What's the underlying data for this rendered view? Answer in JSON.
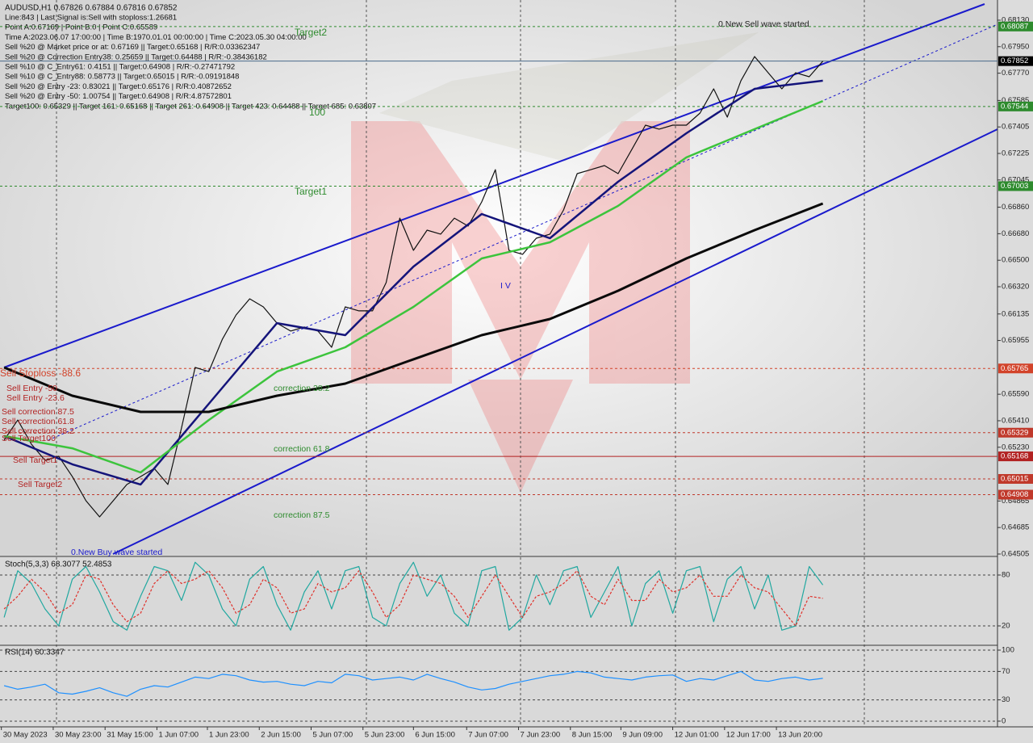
{
  "chart_data": [
    {
      "type": "line",
      "title": "AUDUSD,H1  0.67826 0.67884 0.67816 0.67852",
      "info_lines": [
        "Line:843 | Last Signal is:Sell with stoploss:1.26681",
        "Point A:0.67169 | Point B:0 | Point C:0.65589",
        "Time A:2023.06.07 17:00:00 | Time B:1970.01.01 00:00:00 | Time C:2023.05.30 04:00:00",
        "Sell %20 @ Market price or at: 0.67169 || Target:0.65168 | R/R:0.03362347",
        "Sell %20 @ Correction Entry38: 0.25659 || Target:0.64488 | R/R:-0.38436182",
        "Sell %10 @ C_Entry61: 0.4151 || Target:0.64908 | R/R:-0.27471792",
        "Sell %10 @ C_Entry88: 0.58773 || Target:0.65015 | R/R:-0.09191848",
        "Sell %20 @ Entry -23: 0.83021 || Target:0.65176 | R/R:0.40872652",
        "Sell %20 @ Entry -50: 1.00754 || Target:0.64908 | R/R:4.87572801",
        "Target100: 0.65329 || Target 161: 0.65168 || Target 261: 0.64908 || Target 423: 0.64488 || Target 685: 0.63807"
      ],
      "annotations": [
        "0.New Sell wave started",
        "0.New Buy wave started",
        "I V",
        "correction 38.2",
        "correction 61.8",
        "correction 87.5",
        "Sell Entry -50",
        "Sell Entry -23.6",
        "Sell correction 87.5",
        "Sell correction 61.8",
        "Sell correction 38.2",
        "Sell Target100",
        "Sell Target1",
        "Sell Target2",
        "Target2",
        "100",
        "Target1",
        "Sell Stoploss -88.6"
      ],
      "xlim": [
        -0.3,
        72.8
      ],
      "xticks": [
        {
          "value": -0.2,
          "label": "30 May 2023"
        },
        {
          "value": 3.6,
          "label": "30 May 23:00"
        },
        {
          "value": 7.4,
          "label": "31 May 15:00"
        },
        {
          "value": 11.2,
          "label": "1 Jun 07:00"
        },
        {
          "value": 14.9,
          "label": "1 Jun 23:00"
        },
        {
          "value": 18.7,
          "label": "2 Jun 15:00"
        },
        {
          "value": 22.5,
          "label": "5 Jun 07:00"
        },
        {
          "value": 26.3,
          "label": "5 Jun 23:00"
        },
        {
          "value": 30.0,
          "label": "6 Jun 15:00"
        },
        {
          "value": 33.9,
          "label": "7 Jun 07:00"
        },
        {
          "value": 37.7,
          "label": "7 Jun 23:00"
        },
        {
          "value": 41.5,
          "label": "8 Jun 15:00"
        },
        {
          "value": 45.2,
          "label": "9 Jun 09:00"
        },
        {
          "value": 49.0,
          "label": "12 Jun 01:00"
        },
        {
          "value": 52.8,
          "label": "12 Jun 17:00"
        },
        {
          "value": 56.6,
          "label": "13 Jun 20:00"
        }
      ],
      "ylim": [
        0.64494,
        0.68267
      ],
      "yticks": [
        {
          "value": 0.6813,
          "label": "0.68130"
        },
        {
          "value": 0.6795,
          "label": "0.67950"
        },
        {
          "value": 0.6777,
          "label": "0.67770"
        },
        {
          "value": 0.67585,
          "label": "0.67585"
        },
        {
          "value": 0.67405,
          "label": "0.67405"
        },
        {
          "value": 0.67225,
          "label": "0.67225"
        },
        {
          "value": 0.67045,
          "label": "0.67045"
        },
        {
          "value": 0.6686,
          "label": "0.66860"
        },
        {
          "value": 0.6668,
          "label": "0.66680"
        },
        {
          "value": 0.665,
          "label": "0.66500"
        },
        {
          "value": 0.6632,
          "label": "0.66320"
        },
        {
          "value": 0.66135,
          "label": "0.66135"
        },
        {
          "value": 0.65955,
          "label": "0.65955"
        },
        {
          "value": 0.6559,
          "label": "0.65590"
        },
        {
          "value": 0.6541,
          "label": "0.65410"
        },
        {
          "value": 0.6523,
          "label": "0.65230"
        },
        {
          "value": 0.64865,
          "label": "0.64865"
        },
        {
          "value": 0.64685,
          "label": "0.64685"
        },
        {
          "value": 0.64505,
          "label": "0.64505"
        }
      ],
      "levels": [
        {
          "value": 0.68087,
          "color": "#2e8b2e",
          "style": "dashed"
        },
        {
          "value": 0.67852,
          "color": "#000000",
          "style": "solid"
        },
        {
          "value": 0.67544,
          "color": "#2e8b2e",
          "style": "dashed"
        },
        {
          "value": 0.67003,
          "color": "#2e8b2e",
          "style": "dashed"
        },
        {
          "value": 0.65765,
          "color": "#d2432a",
          "style": "dashed"
        },
        {
          "value": 0.65329,
          "color": "#c0392b",
          "style": "dashed"
        },
        {
          "value": 0.65168,
          "color": "#b22222",
          "style": "solid"
        },
        {
          "value": 0.65015,
          "color": "#c0392b",
          "style": "dashed"
        },
        {
          "value": 0.64908,
          "color": "#c0392b",
          "style": "dashed"
        }
      ],
      "series": [
        {
          "color": "#111111",
          "width": 1.2,
          "values": [
            0.65278,
            0.65415,
            0.65251,
            0.65141,
            0.65169,
            0.65031,
            0.64867,
            0.64757,
            0.64867,
            0.64977,
            0.65031,
            0.65086,
            0.64977,
            0.65361,
            0.65772,
            0.65744,
            0.65964,
            0.66128,
            0.66238,
            0.66183,
            0.66073,
            0.66019,
            0.66046,
            0.66019,
            0.65909,
            0.66183,
            0.66156,
            0.66156,
            0.66348,
            0.66786,
            0.66567,
            0.66704,
            0.66677,
            0.66786,
            0.66732,
            0.66896,
            0.67115,
            0.66567,
            0.6654,
            0.66649,
            0.66677,
            0.66841,
            0.67088,
            0.67115,
            0.67143,
            0.67088,
            0.67252,
            0.67417,
            0.6739,
            0.67417,
            0.67417,
            0.67499,
            0.67664,
            0.67472,
            0.67719,
            0.67883,
            0.67773,
            0.67664,
            0.67773,
            0.67746,
            0.67852
          ]
        },
        {
          "color": "#14147a",
          "width": 2.5,
          "x": [
            0,
            5,
            10,
            15,
            20,
            25,
            30,
            35,
            40,
            45,
            50,
            55,
            60
          ],
          "values": [
            0.65306,
            0.65114,
            0.64977,
            0.65525,
            0.66073,
            0.65991,
            0.66457,
            0.66814,
            0.66649,
            0.67033,
            0.67362,
            0.67664,
            0.67719
          ]
        },
        {
          "color": "#3cc43c",
          "width": 2.5,
          "x": [
            0,
            5,
            10,
            15,
            20,
            25,
            30,
            35,
            40,
            45,
            50,
            55,
            60
          ],
          "values": [
            0.65306,
            0.65223,
            0.65059,
            0.65415,
            0.65744,
            0.65909,
            0.66183,
            0.66512,
            0.66622,
            0.66869,
            0.67198,
            0.6739,
            0.67581
          ]
        },
        {
          "color": "#0a0a0a",
          "width": 3,
          "x": [
            0,
            5,
            10,
            15,
            20,
            25,
            30,
            35,
            40,
            45,
            50,
            55,
            60
          ],
          "values": [
            0.65772,
            0.6558,
            0.6547,
            0.6547,
            0.6558,
            0.65662,
            0.65827,
            0.65991,
            0.66101,
            0.66293,
            0.66512,
            0.66704,
            0.66885
          ]
        }
      ]
    },
    {
      "type": "line",
      "title": "Stoch(5,3,3) 68.3077 52.4853",
      "ylim": [
        -1.9,
        100.95
      ],
      "yticks": [
        80,
        20
      ],
      "series": [
        {
          "color": "#20a8a0",
          "width": 1.2,
          "values": [
            30,
            85,
            70,
            40,
            20,
            75,
            90,
            60,
            25,
            15,
            55,
            90,
            85,
            50,
            95,
            80,
            40,
            20,
            75,
            90,
            45,
            15,
            60,
            85,
            40,
            85,
            90,
            30,
            20,
            70,
            95,
            55,
            80,
            35,
            20,
            85,
            90,
            15,
            30,
            80,
            45,
            85,
            90,
            30,
            60,
            90,
            20,
            70,
            85,
            35,
            85,
            90,
            25,
            75,
            90,
            40,
            80,
            15,
            20,
            90,
            68.3077
          ]
        },
        {
          "color": "#e0302a",
          "width": 1.2,
          "dashed": true,
          "values": [
            40,
            55,
            75,
            60,
            35,
            45,
            80,
            75,
            45,
            25,
            35,
            70,
            85,
            70,
            75,
            85,
            65,
            35,
            45,
            75,
            65,
            35,
            40,
            70,
            60,
            65,
            85,
            60,
            30,
            45,
            80,
            75,
            70,
            55,
            30,
            55,
            80,
            55,
            30,
            55,
            60,
            70,
            85,
            55,
            45,
            75,
            50,
            50,
            75,
            60,
            65,
            80,
            55,
            55,
            80,
            65,
            60,
            40,
            20,
            55,
            52.4853
          ]
        }
      ]
    },
    {
      "type": "line",
      "title": "RSI(14) 60.3347",
      "ylim": [
        -8,
        105.7
      ],
      "yticks": [
        100,
        70,
        30,
        0
      ],
      "series": [
        {
          "color": "#1e90ff",
          "width": 1.2,
          "values": [
            50,
            45,
            48,
            52,
            40,
            38,
            42,
            47,
            40,
            35,
            45,
            50,
            48,
            55,
            62,
            60,
            66,
            64,
            58,
            55,
            56,
            52,
            50,
            56,
            54,
            66,
            64,
            58,
            60,
            62,
            58,
            66,
            60,
            55,
            48,
            44,
            46,
            52,
            56,
            60,
            64,
            66,
            70,
            68,
            62,
            60,
            58,
            62,
            64,
            65,
            56,
            60,
            58,
            64,
            70,
            58,
            56,
            60,
            62,
            58,
            60.3347
          ]
        }
      ]
    }
  ]
}
